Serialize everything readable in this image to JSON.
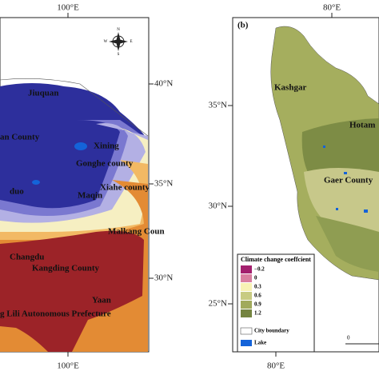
{
  "left_panel": {
    "lon_top": "100°E",
    "lon_bottom": "100°E",
    "lat_labels": [
      "40°N",
      "35°N",
      "30°N"
    ],
    "compass": [
      "N",
      "S",
      "W",
      "E"
    ],
    "places": [
      "Jiuquan",
      "an County",
      "Xining",
      "Gonghe county",
      "Xiahe county",
      "Maqin",
      "duo",
      "Malkang Coun",
      "Changdu",
      "Kangding County",
      "Yaan",
      "g Lili Autonomous Prefecture"
    ]
  },
  "right_panel": {
    "label": "(b)",
    "lon_top": "80°E",
    "lon_bottom": "80°E",
    "lat_labels": [
      "35°N",
      "30°N",
      "25°N"
    ],
    "places": [
      "Kashgar",
      "Hotam",
      "Gaer County"
    ],
    "legend": {
      "title": "Climate change coeffcient",
      "entries": [
        "−0.2",
        "0",
        "0.3",
        "0.6",
        "0.9",
        "1.2"
      ],
      "city_boundary": "City boundary",
      "lake": "Lake"
    },
    "scale_label": "0"
  }
}
